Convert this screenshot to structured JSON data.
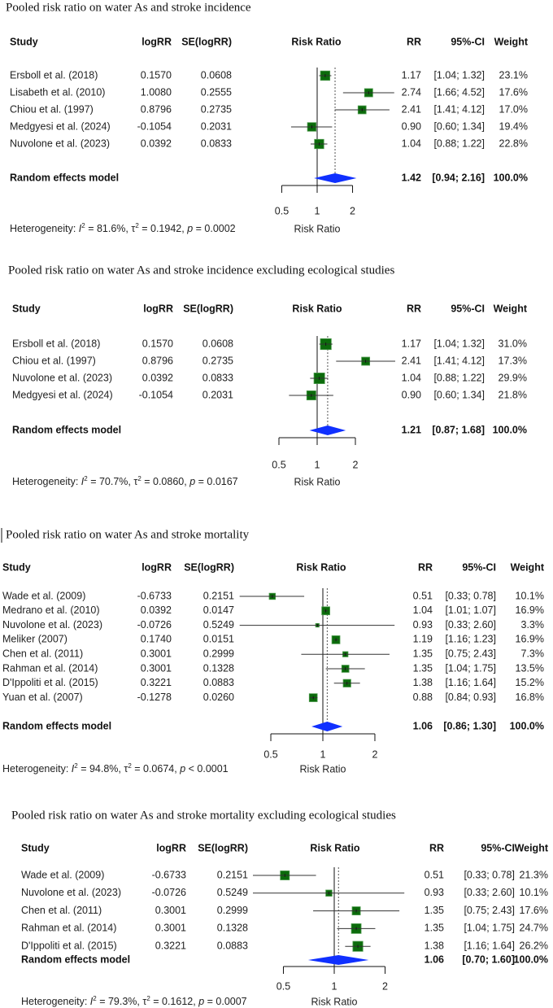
{
  "colors": {
    "box": "#0b6b0b",
    "box_border": "#4c9a4c",
    "diamond": "#1030ff",
    "ci_line": "#333333"
  },
  "chart_data": [
    {
      "type": "forest",
      "title": "Pooled risk ratio on water As and stroke incidence",
      "headers": {
        "study": "Study",
        "logrr": "logRR",
        "se": "SE(logRR)",
        "plot": "Risk Ratio",
        "rr": "RR",
        "ci": "95%-CI",
        "weight": "Weight"
      },
      "studies": [
        {
          "study": "Ersboll et al. (2018)",
          "logrr": "0.1570",
          "se": "0.0608",
          "rr": "1.17",
          "ci": "[1.04; 1.32]",
          "lower": 1.04,
          "upper": 1.32,
          "weight": "23.1%"
        },
        {
          "study": "Lisabeth et al. (2010)",
          "logrr": "1.0080",
          "se": "0.2555",
          "rr": "2.74",
          "ci": "[1.66; 4.52]",
          "lower": 1.66,
          "upper": 4.52,
          "weight": "17.6%"
        },
        {
          "study": "Chiou et al. (1997)",
          "logrr": "0.8796",
          "se": "0.2735",
          "rr": "2.41",
          "ci": "[1.41; 4.12]",
          "lower": 1.41,
          "upper": 4.12,
          "weight": "17.0%"
        },
        {
          "study": "Medgyesi et al. (2024)",
          "logrr": "-0.1054",
          "se": "0.2031",
          "rr": "0.90",
          "ci": "[0.60; 1.34]",
          "lower": 0.6,
          "upper": 1.34,
          "weight": "19.4%"
        },
        {
          "study": "Nuvolone et al. (2023)",
          "logrr": "0.0392",
          "se": "0.0833",
          "rr": "1.04",
          "ci": "[0.88; 1.22]",
          "lower": 0.88,
          "upper": 1.22,
          "weight": "22.8%"
        }
      ],
      "model": {
        "label": "Random effects model",
        "rr": "1.42",
        "ci": "[0.94; 2.16]",
        "lower": 0.94,
        "upper": 2.16,
        "weight": "100.0%"
      },
      "heterogeneity": {
        "label": "Heterogeneity:",
        "i2": "81.6%",
        "tau2": "0.1942",
        "p_op": "=",
        "p": "0.0002"
      },
      "x_ticks": [
        "0.5",
        "1",
        "2"
      ],
      "xlabel": "Risk Ratio",
      "x_scale": "log"
    },
    {
      "type": "forest",
      "title": "Pooled risk ratio on water As and stroke incidence excluding ecological studies",
      "headers": {
        "study": "Study",
        "logrr": "logRR",
        "se": "SE(logRR)",
        "plot": "Risk Ratio",
        "rr": "RR",
        "ci": "95%-CI",
        "weight": "Weight"
      },
      "studies": [
        {
          "study": "Ersboll et al. (2018)",
          "logrr": "0.1570",
          "se": "0.0608",
          "rr": "1.17",
          "ci": "[1.04; 1.32]",
          "lower": 1.04,
          "upper": 1.32,
          "weight": "31.0%"
        },
        {
          "study": "Chiou et al. (1997)",
          "logrr": "0.8796",
          "se": "0.2735",
          "rr": "2.41",
          "ci": "[1.41; 4.12]",
          "lower": 1.41,
          "upper": 4.12,
          "weight": "17.3%"
        },
        {
          "study": "Nuvolone et al. (2023)",
          "logrr": "0.0392",
          "se": "0.0833",
          "rr": "1.04",
          "ci": "[0.88; 1.22]",
          "lower": 0.88,
          "upper": 1.22,
          "weight": "29.9%"
        },
        {
          "study": "Medgyesi et al. (2024)",
          "logrr": "-0.1054",
          "se": "0.2031",
          "rr": "0.90",
          "ci": "[0.60; 1.34]",
          "lower": 0.6,
          "upper": 1.34,
          "weight": "21.8%"
        }
      ],
      "model": {
        "label": "Random effects model",
        "rr": "1.21",
        "ci": "[0.87; 1.68]",
        "lower": 0.87,
        "upper": 1.68,
        "weight": "100.0%"
      },
      "heterogeneity": {
        "label": "Heterogeneity:",
        "i2": "70.7%",
        "tau2": "0.0860",
        "p_op": "=",
        "p": "0.0167"
      },
      "x_ticks": [
        "0.5",
        "1",
        "2"
      ],
      "xlabel": "Risk Ratio",
      "x_scale": "log"
    },
    {
      "type": "forest",
      "title": "Pooled risk ratio on water As and stroke mortality",
      "headers": {
        "study": "Study",
        "logrr": "logRR",
        "se": "SE(logRR)",
        "plot": "Risk Ratio",
        "rr": "RR",
        "ci": "95%-CI",
        "weight": "Weight"
      },
      "studies": [
        {
          "study": "Wade et al. (2009)",
          "logrr": "-0.6733",
          "se": "0.2151",
          "rr": "0.51",
          "ci": "[0.33; 0.78]",
          "lower": 0.33,
          "upper": 0.78,
          "weight": "10.1%"
        },
        {
          "study": "Medrano et al. (2010)",
          "logrr": "0.0392",
          "se": "0.0147",
          "rr": "1.04",
          "ci": "[1.01; 1.07]",
          "lower": 1.01,
          "upper": 1.07,
          "weight": "16.9%"
        },
        {
          "study": "Nuvolone et al. (2023)",
          "logrr": "-0.0726",
          "se": "0.5249",
          "rr": "0.93",
          "ci": "[0.33; 2.60]",
          "lower": 0.33,
          "upper": 2.6,
          "weight": "3.3%"
        },
        {
          "study": "Meliker (2007)",
          "logrr": "0.1740",
          "se": "0.0151",
          "rr": "1.19",
          "ci": "[1.16; 1.23]",
          "lower": 1.16,
          "upper": 1.23,
          "weight": "16.9%"
        },
        {
          "study": "Chen et al. (2011)",
          "logrr": "0.3001",
          "se": "0.2999",
          "rr": "1.35",
          "ci": "[0.75; 2.43]",
          "lower": 0.75,
          "upper": 2.43,
          "weight": "7.3%"
        },
        {
          "study": "Rahman et al. (2014)",
          "logrr": "0.3001",
          "se": "0.1328",
          "rr": "1.35",
          "ci": "[1.04; 1.75]",
          "lower": 1.04,
          "upper": 1.75,
          "weight": "13.5%"
        },
        {
          "study": "D'Ippoliti et al. (2015)",
          "logrr": "0.3221",
          "se": "0.0883",
          "rr": "1.38",
          "ci": "[1.16; 1.64]",
          "lower": 1.16,
          "upper": 1.64,
          "weight": "15.2%"
        },
        {
          "study": "Yuan et al. (2007)",
          "logrr": "-0.1278",
          "se": "0.0260",
          "rr": "0.88",
          "ci": "[0.84; 0.93]",
          "lower": 0.84,
          "upper": 0.93,
          "weight": "16.8%"
        }
      ],
      "model": {
        "label": "Random effects model",
        "rr": "1.06",
        "ci": "[0.86; 1.30]",
        "lower": 0.86,
        "upper": 1.3,
        "weight": "100.0%"
      },
      "heterogeneity": {
        "label": "Heterogeneity:",
        "i2": "94.8%",
        "tau2": "0.0674",
        "p_op": "<",
        "p": "0.0001"
      },
      "x_ticks": [
        "0.5",
        "1",
        "2"
      ],
      "xlabel": "Risk Ratio",
      "x_scale": "log"
    },
    {
      "type": "forest",
      "title": "Pooled risk ratio on water As and stroke mortality excluding ecological studies",
      "headers": {
        "study": "Study",
        "logrr": "logRR",
        "se": "SE(logRR)",
        "plot": "Risk Ratio",
        "rr": "RR",
        "ci": "95%-CI",
        "weight": "Weight"
      },
      "studies": [
        {
          "study": "Wade et al. (2009)",
          "logrr": "-0.6733",
          "se": "0.2151",
          "rr": "0.51",
          "ci": "[0.33; 0.78]",
          "lower": 0.33,
          "upper": 0.78,
          "weight": "21.3%"
        },
        {
          "study": "Nuvolone et al. (2023)",
          "logrr": "-0.0726",
          "se": "0.5249",
          "rr": "0.93",
          "ci": "[0.33; 2.60]",
          "lower": 0.33,
          "upper": 2.6,
          "weight": "10.1%"
        },
        {
          "study": "Chen et al. (2011)",
          "logrr": "0.3001",
          "se": "0.2999",
          "rr": "1.35",
          "ci": "[0.75; 2.43]",
          "lower": 0.75,
          "upper": 2.43,
          "weight": "17.6%"
        },
        {
          "study": "Rahman et al. (2014)",
          "logrr": "0.3001",
          "se": "0.1328",
          "rr": "1.35",
          "ci": "[1.04; 1.75]",
          "lower": 1.04,
          "upper": 1.75,
          "weight": "24.7%"
        },
        {
          "study": "D'Ippoliti et al. (2015)",
          "logrr": "0.3221",
          "se": "0.0883",
          "rr": "1.38",
          "ci": "[1.16; 1.64]",
          "lower": 1.16,
          "upper": 1.64,
          "weight": "26.2%"
        }
      ],
      "model": {
        "label": "Random effects model",
        "rr": "1.06",
        "ci": "[0.70; 1.60]",
        "lower": 0.7,
        "upper": 1.6,
        "weight": "100.0%"
      },
      "heterogeneity": {
        "label": "Heterogeneity:",
        "i2": "79.3%",
        "tau2": "0.1612",
        "p_op": "=",
        "p": "0.0007"
      },
      "x_ticks": [
        "0.5",
        "1",
        "2"
      ],
      "xlabel": "Risk Ratio",
      "x_scale": "log"
    }
  ]
}
